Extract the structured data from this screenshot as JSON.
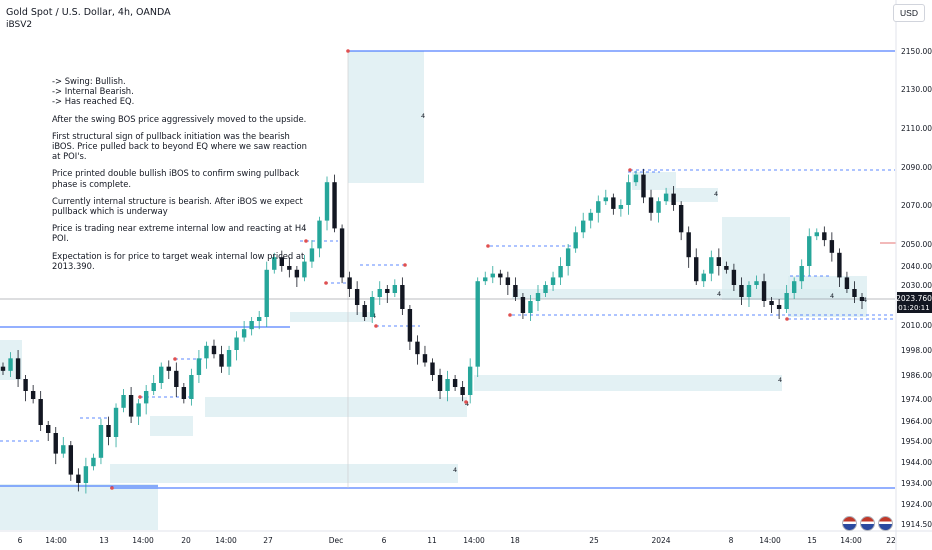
{
  "header": {
    "symbol_line": "Gold Spot / U.S. Dollar, 4h, OANDA",
    "indicator": "iBSV2",
    "currency_button": "USD"
  },
  "notes": [
    "-> Swing: Bullish.",
    "-> Internal Bearish.",
    "-> Has reached EQ.",
    "After the swing BOS price aggressively moved to the upside.",
    "First structural sign of pullback initiation was the bearish iBOS.  Price pulled back to beyond EQ where we saw reaction at POI's.",
    "Price printed double bullish iBOS to confirm swing pullback phase is complete.",
    "Currently internal structure is bearish.  After iBOS we expect pullback which is underway",
    "Price is trading near extreme internal low and reacting at H4 POI.",
    "Expectation is for price to target weak internal low priced at 2013.390."
  ],
  "price_tag": {
    "price": "2023.760",
    "countdown": "01:20:11"
  },
  "colors": {
    "up_candle": "#26a69a",
    "down_candle": "#131722",
    "zone": "#d9ecf0",
    "structure_line": "#2962ff",
    "pivot_marker": "#e05050",
    "background": "#ffffff"
  },
  "chart_data": {
    "type": "candlestick",
    "symbol": "Gold Spot / U.S. Dollar, 4h, OANDA",
    "y_axis_ticks": [
      2150.0,
      2130.0,
      2110.0,
      2090.0,
      2070.0,
      2050.0,
      2040.0,
      2030.0,
      2010.0,
      1998.0,
      1986.0,
      1974.0,
      1964.0,
      1954.0,
      1944.0,
      1934.0,
      1924.0,
      1914.5
    ],
    "y_range": [
      1912,
      2156
    ],
    "x_axis_labels": [
      "6",
      "14:00",
      "13",
      "14:00",
      "20",
      "14:00",
      "27",
      "Dec",
      "6",
      "11",
      "14:00",
      "18",
      "25",
      "2024",
      "8",
      "14:00",
      "15",
      "14:00",
      "22"
    ],
    "current_price": 2023.76,
    "weak_internal_low_target": 2013.39,
    "swing_high": 2149.5,
    "swing_low": 1933.0,
    "zone_marker_label": "4",
    "close_path": [
      1988,
      1994,
      1984,
      1978,
      1974,
      1962,
      1958,
      1948,
      1952,
      1938,
      1934,
      1942,
      1946,
      1962,
      1956,
      1970,
      1976,
      1966,
      1972,
      1978,
      1982,
      1990,
      1988,
      1980,
      1974,
      1986,
      1994,
      2000,
      1996,
      1990,
      1998,
      2004,
      2008,
      2012,
      2014,
      2038,
      2044,
      2040,
      2038,
      2034,
      2042,
      2048,
      2062,
      2082,
      2058,
      2034,
      2028,
      2020,
      2014,
      2024,
      2028,
      2026,
      2030,
      2018,
      2002,
      1996,
      1992,
      1986,
      1978,
      1984,
      1980,
      1976,
      1990,
      2032,
      2034,
      2036,
      2034,
      2030,
      2024,
      2016,
      2022,
      2026,
      2030,
      2034,
      2040,
      2048,
      2056,
      2062,
      2066,
      2072,
      2074,
      2068,
      2070,
      2082,
      2086,
      2074,
      2066,
      2072,
      2076,
      2070,
      2056,
      2044,
      2032,
      2036,
      2044,
      2040,
      2038,
      2030,
      2024,
      2030,
      2032,
      2022,
      2020,
      2018,
      2026,
      2032,
      2040,
      2054,
      2056,
      2052,
      2046,
      2034,
      2028,
      2024,
      2022
    ]
  }
}
